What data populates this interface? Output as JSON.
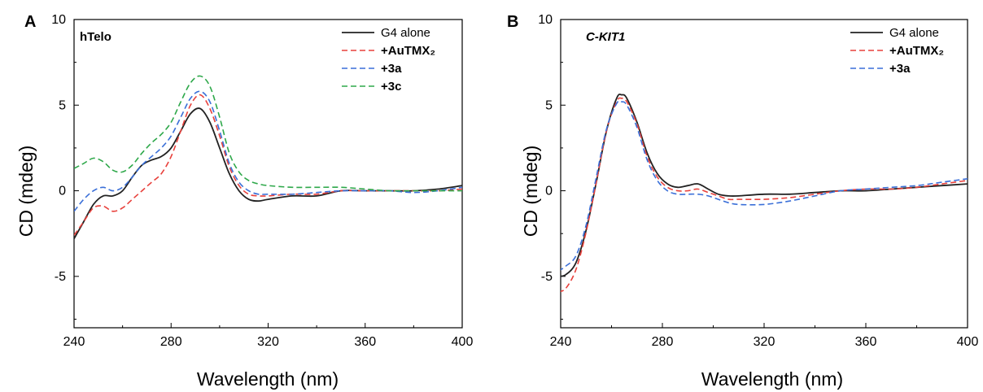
{
  "chart_data": [
    {
      "type": "line",
      "panel_letter": "A",
      "inset_label": "hTelo",
      "xlabel": "Wavelength (nm)",
      "ylabel": "CD (mdeg)",
      "xlim": [
        240,
        400
      ],
      "ylim": [
        -8,
        10
      ],
      "xticks": [
        "240",
        "280",
        "320",
        "360",
        "400"
      ],
      "yticks": [
        "10",
        "5",
        "0",
        "-5"
      ],
      "legend_position": "top-right",
      "series": [
        {
          "name": "G4 alone",
          "color": "#222222",
          "style": "solid",
          "x": [
            240,
            244,
            248,
            252,
            256,
            260,
            264,
            268,
            272,
            276,
            280,
            284,
            288,
            292,
            296,
            300,
            304,
            308,
            312,
            316,
            320,
            330,
            340,
            350,
            360,
            370,
            380,
            390,
            400
          ],
          "y": [
            -2.8,
            -1.8,
            -0.8,
            -0.3,
            -0.3,
            0.0,
            0.8,
            1.5,
            1.8,
            2.0,
            2.5,
            3.5,
            4.5,
            4.8,
            4.0,
            2.5,
            1.0,
            0.0,
            -0.5,
            -0.6,
            -0.5,
            -0.3,
            -0.3,
            0.0,
            0.0,
            0.0,
            0.0,
            0.1,
            0.3
          ]
        },
        {
          "name": "+AuTMX₂",
          "color": "#e8413c",
          "style": "dashed",
          "x": [
            240,
            244,
            248,
            252,
            256,
            260,
            264,
            268,
            272,
            276,
            280,
            284,
            288,
            292,
            296,
            300,
            304,
            308,
            312,
            316,
            320,
            330,
            340,
            350,
            360,
            370,
            380,
            390,
            400
          ],
          "y": [
            -2.6,
            -1.8,
            -1.0,
            -0.9,
            -1.2,
            -1.0,
            -0.5,
            0.0,
            0.5,
            1.0,
            2.0,
            3.5,
            5.0,
            5.6,
            4.8,
            3.2,
            1.4,
            0.3,
            -0.2,
            -0.3,
            -0.3,
            -0.2,
            -0.2,
            0.0,
            0.0,
            0.0,
            0.0,
            0.0,
            0.1
          ]
        },
        {
          "name": "+3a",
          "color": "#3a6fd8",
          "style": "dashed",
          "x": [
            240,
            244,
            248,
            252,
            256,
            260,
            264,
            268,
            272,
            276,
            280,
            284,
            288,
            292,
            296,
            300,
            304,
            308,
            312,
            316,
            320,
            330,
            340,
            350,
            360,
            370,
            380,
            390,
            400
          ],
          "y": [
            -1.2,
            -0.5,
            0.0,
            0.2,
            0.0,
            0.2,
            0.8,
            1.5,
            2.0,
            2.5,
            3.2,
            4.3,
            5.4,
            5.8,
            5.2,
            3.5,
            1.6,
            0.5,
            0.0,
            -0.2,
            -0.2,
            -0.2,
            -0.1,
            0.0,
            0.0,
            0.0,
            -0.1,
            0.0,
            0.2
          ]
        },
        {
          "name": "+3c",
          "color": "#2ea84a",
          "style": "dashed",
          "x": [
            240,
            244,
            248,
            252,
            256,
            260,
            264,
            268,
            272,
            276,
            280,
            284,
            288,
            292,
            296,
            300,
            304,
            308,
            312,
            316,
            320,
            330,
            340,
            350,
            360,
            370,
            380,
            390,
            400
          ],
          "y": [
            1.3,
            1.6,
            1.9,
            1.7,
            1.2,
            1.1,
            1.5,
            2.2,
            2.8,
            3.3,
            4.0,
            5.2,
            6.3,
            6.7,
            6.1,
            4.3,
            2.2,
            1.1,
            0.6,
            0.4,
            0.3,
            0.2,
            0.2,
            0.2,
            0.1,
            0.0,
            0.0,
            0.0,
            0.0
          ]
        }
      ]
    },
    {
      "type": "line",
      "panel_letter": "B",
      "inset_label": "C-KIT1",
      "xlabel": "Wavelength (nm)",
      "ylabel": "CD (mdeg)",
      "xlim": [
        240,
        400
      ],
      "ylim": [
        -8,
        10
      ],
      "xticks": [
        "240",
        "280",
        "320",
        "360",
        "400"
      ],
      "yticks": [
        "10",
        "5",
        "0",
        "-5"
      ],
      "legend_position": "top-right",
      "series": [
        {
          "name": "G4 alone",
          "color": "#222222",
          "style": "solid",
          "x": [
            239,
            242,
            246,
            250,
            254,
            258,
            262,
            264,
            266,
            270,
            274,
            278,
            282,
            286,
            290,
            294,
            298,
            302,
            306,
            310,
            320,
            330,
            340,
            350,
            360,
            370,
            380,
            390,
            400
          ],
          "y": [
            -5.0,
            -4.9,
            -4.2,
            -2.3,
            0.5,
            3.5,
            5.4,
            5.6,
            5.4,
            4.0,
            2.2,
            1.0,
            0.4,
            0.2,
            0.3,
            0.4,
            0.1,
            -0.2,
            -0.3,
            -0.3,
            -0.2,
            -0.2,
            -0.1,
            0.0,
            0.0,
            0.1,
            0.2,
            0.3,
            0.4
          ]
        },
        {
          "name": "+AuTMX₂",
          "color": "#e8413c",
          "style": "dashed",
          "x": [
            239,
            242,
            246,
            250,
            254,
            258,
            262,
            264,
            266,
            270,
            274,
            278,
            282,
            286,
            290,
            294,
            298,
            302,
            306,
            310,
            320,
            330,
            340,
            350,
            360,
            370,
            380,
            390,
            400
          ],
          "y": [
            -5.9,
            -5.7,
            -4.6,
            -2.4,
            0.5,
            3.5,
            5.2,
            5.4,
            5.2,
            3.9,
            2.0,
            0.8,
            0.2,
            0.0,
            0.0,
            0.1,
            -0.1,
            -0.3,
            -0.5,
            -0.5,
            -0.5,
            -0.4,
            -0.2,
            0.0,
            0.1,
            0.1,
            0.2,
            0.4,
            0.6
          ]
        },
        {
          "name": "+3a",
          "color": "#3a6fd8",
          "style": "dashed",
          "x": [
            239,
            242,
            246,
            250,
            254,
            258,
            262,
            264,
            266,
            270,
            274,
            278,
            282,
            286,
            290,
            294,
            298,
            302,
            306,
            310,
            320,
            330,
            340,
            350,
            360,
            370,
            380,
            390,
            400
          ],
          "y": [
            -4.7,
            -4.4,
            -3.8,
            -2.0,
            0.8,
            3.6,
            5.1,
            5.2,
            5.0,
            3.7,
            1.8,
            0.6,
            0.0,
            -0.2,
            -0.2,
            -0.2,
            -0.3,
            -0.5,
            -0.7,
            -0.8,
            -0.8,
            -0.6,
            -0.3,
            0.0,
            0.1,
            0.2,
            0.3,
            0.5,
            0.7
          ]
        }
      ]
    }
  ]
}
